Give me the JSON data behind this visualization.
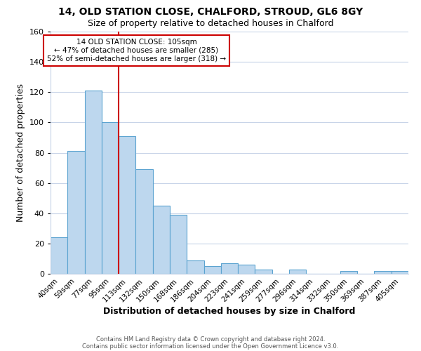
{
  "title1": "14, OLD STATION CLOSE, CHALFORD, STROUD, GL6 8GY",
  "title2": "Size of property relative to detached houses in Chalford",
  "xlabel": "Distribution of detached houses by size in Chalford",
  "ylabel": "Number of detached properties",
  "bar_labels": [
    "40sqm",
    "59sqm",
    "77sqm",
    "95sqm",
    "113sqm",
    "132sqm",
    "150sqm",
    "168sqm",
    "186sqm",
    "204sqm",
    "223sqm",
    "241sqm",
    "259sqm",
    "277sqm",
    "296sqm",
    "314sqm",
    "332sqm",
    "350sqm",
    "369sqm",
    "387sqm",
    "405sqm"
  ],
  "bar_heights": [
    24,
    81,
    121,
    100,
    91,
    69,
    45,
    39,
    9,
    5,
    7,
    6,
    3,
    0,
    3,
    0,
    0,
    2,
    0,
    2,
    2
  ],
  "bar_color": "#bdd7ee",
  "bar_edge_color": "#5ba3d0",
  "vline_x": 3.5,
  "vline_color": "#cc0000",
  "annotation_title": "14 OLD STATION CLOSE: 105sqm",
  "annotation_line1": "← 47% of detached houses are smaller (285)",
  "annotation_line2": "52% of semi-detached houses are larger (318) →",
  "annotation_box_edge": "#cc0000",
  "ylim": [
    0,
    160
  ],
  "yticks": [
    0,
    20,
    40,
    60,
    80,
    100,
    120,
    140,
    160
  ],
  "footer1": "Contains HM Land Registry data © Crown copyright and database right 2024.",
  "footer2": "Contains public sector information licensed under the Open Government Licence v3.0.",
  "background_color": "#ffffff",
  "grid_color": "#c8d4e8"
}
